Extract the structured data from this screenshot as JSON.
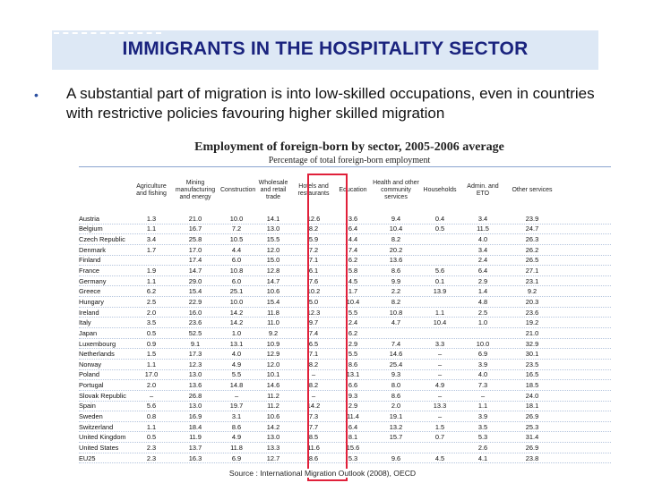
{
  "slide": {
    "title": "IMMIGRANTS IN THE HOSPITALITY SECTOR",
    "bullet_marker": "•",
    "bullet": "A substantial part of migration is into low-skilled occupations, even in countries with restrictive policies favouring higher skilled migration",
    "source": "Source : International Migration Outlook (2008), OECD"
  },
  "figure": {
    "title": "Employment of foreign-born by sector, 2005-2006 average",
    "subtitle": "Percentage of total foreign-born employment",
    "highlight_color": "#e0203a",
    "columns": [
      "",
      "Agriculture and fishing",
      "Mining manufacturing and energy",
      "Construction",
      "Wholesale and retail trade",
      "Hotels and restaurants",
      "Education",
      "Health and other community services",
      "Households",
      "Admin. and ETO",
      "Other services"
    ],
    "rows": [
      [
        "Austria",
        "1.3",
        "21.0",
        "10.0",
        "14.1",
        "12.6",
        "3.6",
        "9.4",
        "0.4",
        "3.4",
        "23.9"
      ],
      [
        "Belgium",
        "1.1",
        "16.7",
        "7.2",
        "13.0",
        "8.2",
        "6.4",
        "10.4",
        "0.5",
        "11.5",
        "24.7"
      ],
      [
        "Czech Republic",
        "3.4",
        "25.8",
        "10.5",
        "15.5",
        "5.9",
        "4.4",
        "8.2",
        "",
        "4.0",
        "26.3"
      ],
      [
        "Denmark",
        "1.7",
        "17.0",
        "4.4",
        "12.0",
        "7.2",
        "7.4",
        "20.2",
        "",
        "3.4",
        "26.2"
      ],
      [
        "Finland",
        "",
        "17.4",
        "6.0",
        "15.0",
        "7.1",
        "6.2",
        "13.6",
        "",
        "2.4",
        "26.5"
      ],
      [
        "France",
        "1.9",
        "14.7",
        "10.8",
        "12.8",
        "6.1",
        "5.8",
        "8.6",
        "5.6",
        "6.4",
        "27.1"
      ],
      [
        "Germany",
        "1.1",
        "29.0",
        "6.0",
        "14.7",
        "7.6",
        "4.5",
        "9.9",
        "0.1",
        "2.9",
        "23.1"
      ],
      [
        "Greece",
        "6.2",
        "15.4",
        "25.1",
        "10.6",
        "10.2",
        "1.7",
        "2.2",
        "13.9",
        "1.4",
        "9.2"
      ],
      [
        "Hungary",
        "2.5",
        "22.9",
        "10.0",
        "15.4",
        "5.0",
        "10.4",
        "8.2",
        "",
        "4.8",
        "20.3"
      ],
      [
        "Ireland",
        "2.0",
        "16.0",
        "14.2",
        "11.8",
        "12.3",
        "5.5",
        "10.8",
        "1.1",
        "2.5",
        "23.6"
      ],
      [
        "Italy",
        "3.5",
        "23.6",
        "14.2",
        "11.0",
        "9.7",
        "2.4",
        "4.7",
        "10.4",
        "1.0",
        "19.2"
      ],
      [
        "Japan",
        "0.5",
        "52.5",
        "1.0",
        "9.2",
        "7.4",
        "6.2",
        "",
        "",
        "",
        "21.0"
      ],
      [
        "Luxembourg",
        "0.9",
        "9.1",
        "13.1",
        "10.9",
        "6.5",
        "2.9",
        "7.4",
        "3.3",
        "10.0",
        "32.9"
      ],
      [
        "Netherlands",
        "1.5",
        "17.3",
        "4.0",
        "12.9",
        "7.1",
        "5.5",
        "14.6",
        "–",
        "6.9",
        "30.1"
      ],
      [
        "Norway",
        "1.1",
        "12.3",
        "4.9",
        "12.0",
        "8.2",
        "8.6",
        "25.4",
        "–",
        "3.9",
        "23.5"
      ],
      [
        "Poland",
        "17.0",
        "13.0",
        "5.5",
        "10.1",
        "–",
        "13.1",
        "9.3",
        "–",
        "4.0",
        "16.5"
      ],
      [
        "Portugal",
        "2.0",
        "13.6",
        "14.8",
        "14.6",
        "8.2",
        "6.6",
        "8.0",
        "4.9",
        "7.3",
        "18.5"
      ],
      [
        "Slovak Republic",
        "–",
        "26.8",
        "–",
        "11.2",
        "–",
        "9.3",
        "8.6",
        "–",
        "–",
        "24.0"
      ],
      [
        "Spain",
        "5.6",
        "13.0",
        "19.7",
        "11.2",
        "14.2",
        "2.9",
        "2.0",
        "13.3",
        "1.1",
        "18.1"
      ],
      [
        "Sweden",
        "0.8",
        "16.9",
        "3.1",
        "10.6",
        "7.3",
        "11.4",
        "19.1",
        "–",
        "3.9",
        "26.9"
      ],
      [
        "Switzerland",
        "1.1",
        "18.4",
        "8.6",
        "14.2",
        "7.7",
        "6.4",
        "13.2",
        "1.5",
        "3.5",
        "25.3"
      ],
      [
        "United Kingdom",
        "0.5",
        "11.9",
        "4.9",
        "13.0",
        "8.5",
        "8.1",
        "15.7",
        "0.7",
        "5.3",
        "31.4"
      ],
      [
        "United States",
        "2.3",
        "13.7",
        "11.8",
        "13.3",
        "11.6",
        "15.6",
        "",
        "",
        "2.6",
        "26.9"
      ],
      [
        "EU25",
        "2.3",
        "16.3",
        "6.9",
        "12.7",
        "8.6",
        "5.3",
        "9.6",
        "4.5",
        "4.1",
        "23.8"
      ]
    ]
  }
}
